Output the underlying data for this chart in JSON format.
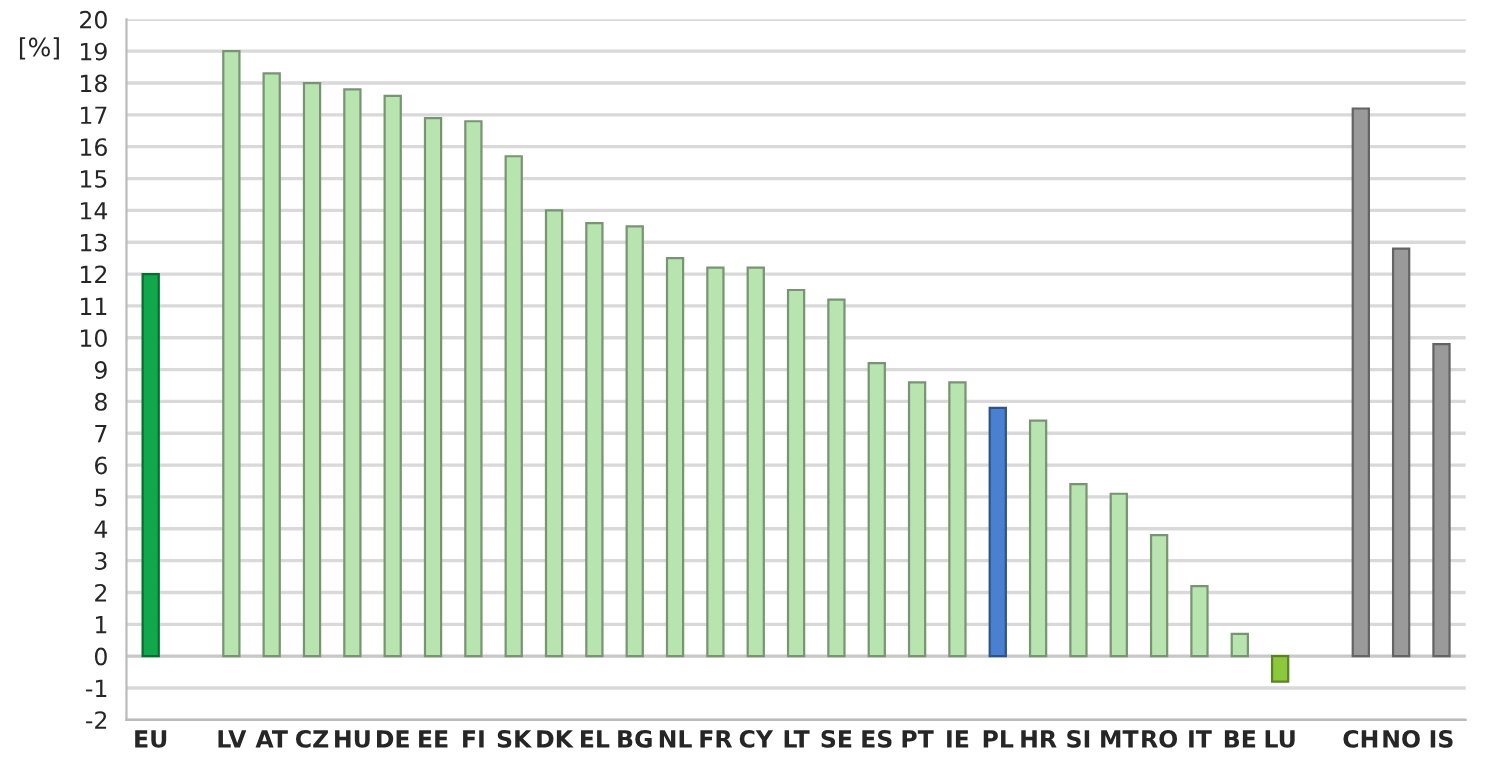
{
  "chart_data": {
    "type": "bar",
    "ylabel": "[%]",
    "categories": [
      "EU",
      null,
      "LV",
      "AT",
      "CZ",
      "HU",
      "DE",
      "EE",
      "FI",
      "SK",
      "DK",
      "EL",
      "BG",
      "NL",
      "FR",
      "CY",
      "LT",
      "SE",
      "ES",
      "PT",
      "IE",
      "PL",
      "HR",
      "SI",
      "MT",
      "RO",
      "IT",
      "BE",
      "LU",
      null,
      "CH",
      "NO",
      "IS"
    ],
    "values": [
      12,
      null,
      19,
      18.3,
      18,
      17.8,
      17.6,
      16.9,
      16.8,
      15.7,
      14,
      13.6,
      13.5,
      12.5,
      12.2,
      12.2,
      11.5,
      11.2,
      9.2,
      8.6,
      8.6,
      7.8,
      7.4,
      5.4,
      5.1,
      3.8,
      2.2,
      0.7,
      -0.8,
      null,
      17.2,
      12.8,
      9.8
    ],
    "colors": [
      "#10a84a",
      "#ffffff",
      "#b8e4b0",
      "#b8e4b0",
      "#b8e4b0",
      "#b8e4b0",
      "#b8e4b0",
      "#b8e4b0",
      "#b8e4b0",
      "#b8e4b0",
      "#b8e4b0",
      "#b8e4b0",
      "#b8e4b0",
      "#b8e4b0",
      "#b8e4b0",
      "#b8e4b0",
      "#b8e4b0",
      "#b8e4b0",
      "#b8e4b0",
      "#b8e4b0",
      "#b8e4b0",
      "#4a80d0",
      "#b8e4b0",
      "#b8e4b0",
      "#b8e4b0",
      "#b8e4b0",
      "#b8e4b0",
      "#b8e4b0",
      "#8cc83c",
      "#ffffff",
      "#9a9a9a",
      "#9a9a9a",
      "#9a9a9a"
    ],
    "ylim": [
      -2,
      20
    ],
    "yticks": [
      -2,
      -1,
      0,
      1,
      2,
      3,
      4,
      5,
      6,
      7,
      8,
      9,
      10,
      11,
      12,
      13,
      14,
      15,
      16,
      17,
      18,
      19,
      20
    ],
    "grid": "y",
    "legend": false
  }
}
